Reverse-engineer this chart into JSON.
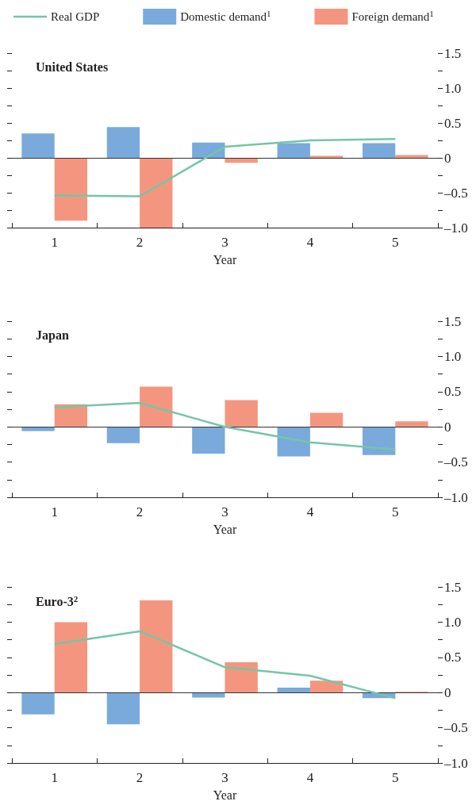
{
  "chart_data": [
    {
      "type": "bar",
      "title": "United States",
      "xlabel": "Year",
      "categories": [
        "1",
        "2",
        "3",
        "4",
        "5"
      ],
      "legend": "top",
      "grid": false,
      "marker": "none",
      "series": [
        {
          "name": "Real GDP",
          "type": "line",
          "color": "#74c6a6",
          "values": [
            -0.54,
            -0.55,
            0.16,
            0.25,
            0.27
          ]
        },
        {
          "name": "Domestic demand$^{1}$",
          "color": "#79aadb",
          "values": [
            0.35,
            0.44,
            0.22,
            0.21,
            0.21
          ]
        },
        {
          "name": "Foreign demand$^{1}$",
          "color": "#f4967f",
          "values": [
            -0.9,
            -1.0,
            -0.07,
            0.03,
            0.04
          ]
        }
      ],
      "ylim": [
        -1,
        1.5
      ],
      "yticks": [
        {
          "value": -1,
          "label": "–1.0"
        },
        {
          "value": -0.75,
          "label": null
        },
        {
          "value": -0.5,
          "label": "–0.5"
        },
        {
          "value": -0.25,
          "label": null
        },
        0,
        {
          "value": 0.25,
          "label": null
        },
        0.5,
        {
          "value": 0.75,
          "label": null
        },
        {
          "value": 1,
          "label": "1.0"
        },
        {
          "value": 1.25,
          "label": null
        },
        1.5
      ],
      "ref_lines": [
        {
          "axis": "y",
          "value": 0,
          "color": "#333333"
        }
      ]
    },
    {
      "type": "bar",
      "title": "Japan",
      "xlabel": "Year",
      "categories": [
        "1",
        "2",
        "3",
        "4",
        "5"
      ],
      "grid": false,
      "marker": "none",
      "series": [
        {
          "type": "line",
          "color": "#74c6a6",
          "values": [
            0.28,
            0.34,
            0.0,
            -0.22,
            -0.32
          ]
        },
        {
          "color": "#79aadb",
          "values": [
            -0.06,
            -0.23,
            -0.38,
            -0.42,
            -0.4
          ]
        },
        {
          "color": "#f4967f",
          "values": [
            0.32,
            0.57,
            0.38,
            0.2,
            0.08
          ]
        }
      ],
      "ylim": [
        -1,
        1.5
      ],
      "yticks": [
        {
          "value": -1,
          "label": "–1.0"
        },
        {
          "value": -0.75,
          "label": null
        },
        {
          "value": -0.5,
          "label": "–0.5"
        },
        {
          "value": -0.25,
          "label": null
        },
        0,
        {
          "value": 0.25,
          "label": null
        },
        0.5,
        {
          "value": 0.75,
          "label": null
        },
        {
          "value": 1,
          "label": "1.0"
        },
        {
          "value": 1.25,
          "label": null
        },
        1.5
      ],
      "ref_lines": [
        {
          "axis": "y",
          "value": 0,
          "color": "#333333"
        }
      ]
    },
    {
      "type": "bar",
      "title": "Euro-3$^{2}$",
      "xlabel": "Year",
      "categories": [
        "1",
        "2",
        "3",
        "4",
        "5"
      ],
      "grid": false,
      "marker": "none",
      "series": [
        {
          "type": "line",
          "color": "#74c6a6",
          "values": [
            0.69,
            0.87,
            0.36,
            0.24,
            -0.08
          ]
        },
        {
          "color": "#79aadb",
          "values": [
            -0.31,
            -0.45,
            -0.07,
            0.07,
            -0.08
          ]
        },
        {
          "color": "#f4967f",
          "values": [
            1.0,
            1.31,
            0.43,
            0.17,
            0.01
          ]
        }
      ],
      "ylim": [
        -1,
        1.5
      ],
      "yticks": [
        {
          "value": -1,
          "label": "–1.0"
        },
        {
          "value": -0.75,
          "label": null
        },
        {
          "value": -0.5,
          "label": "–0.5"
        },
        {
          "value": -0.25,
          "label": null
        },
        0,
        {
          "value": 0.25,
          "label": null
        },
        0.5,
        {
          "value": 0.75,
          "label": null
        },
        {
          "value": 1,
          "label": "1.0"
        },
        {
          "value": 1.25,
          "label": null
        },
        1.5
      ],
      "ref_lines": [
        {
          "axis": "y",
          "value": 0,
          "color": "#333333"
        }
      ]
    }
  ]
}
